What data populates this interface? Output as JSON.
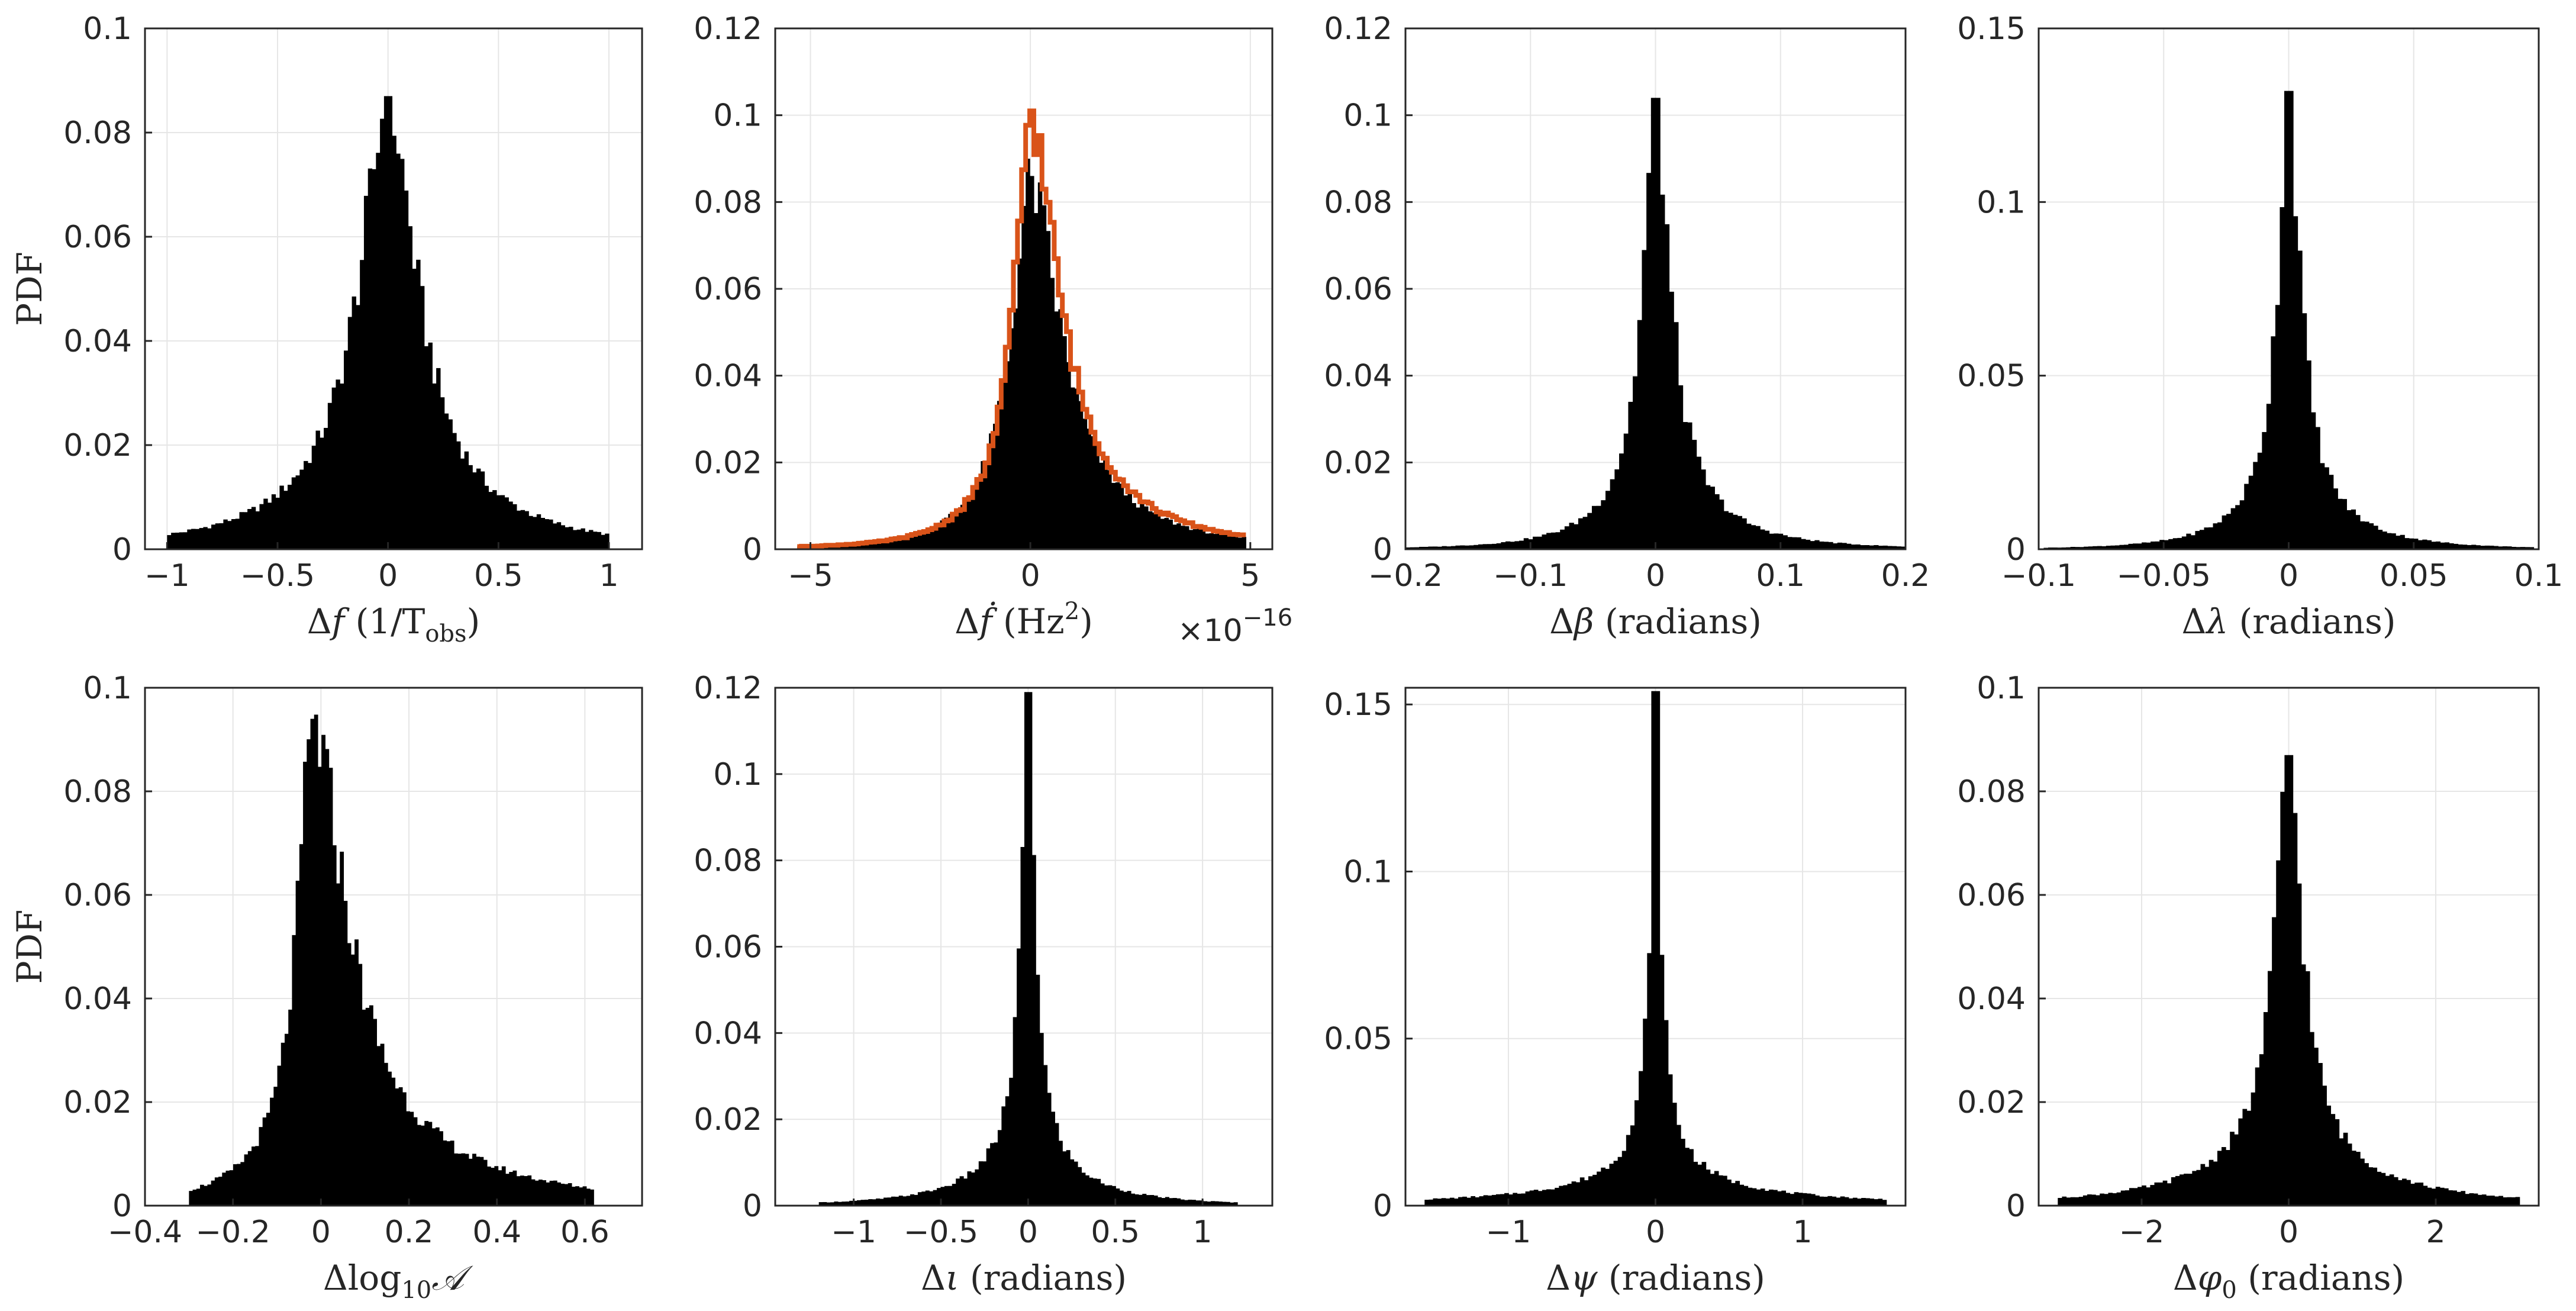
{
  "figure": {
    "ylabel": "PDF",
    "colors": {
      "hist": "#000000",
      "overlay": "#d95319",
      "grid": "#e6e6e6",
      "axis": "#262626"
    }
  },
  "chart_data": [
    {
      "type": "histogram",
      "xlabel": {
        "pre": "Δ",
        "var": "f",
        "post": " (1/T",
        "sub": "obs",
        "end": ")"
      },
      "ylabel": "PDF",
      "xlim": [
        -1.1,
        1.15
      ],
      "ylim": [
        0,
        0.1
      ],
      "xticks": [
        -1,
        -0.5,
        0,
        0.5,
        1
      ],
      "xtick_labels": [
        "−1",
        "−0.5",
        "0",
        "0.5",
        "1"
      ],
      "yticks": [
        0,
        0.02,
        0.04,
        0.06,
        0.08,
        0.1
      ],
      "ytick_labels": [
        "0",
        "0.02",
        "0.04",
        "0.06",
        "0.08",
        "0.1"
      ],
      "center": 0,
      "peak": 0.087,
      "hw": 0.16,
      "tail": 0.55,
      "extent": [
        -1.0,
        1.0
      ],
      "skew": 1.0,
      "bins": 110,
      "exponent": ""
    },
    {
      "type": "histogram",
      "xlabel": {
        "pre": "Δ",
        "var": "ḟ",
        "post": " (Hz",
        "sup": "2",
        "end": ")"
      },
      "xlim": [
        -5.8,
        5.5
      ],
      "ylim": [
        0,
        0.12
      ],
      "xticks": [
        -5,
        0,
        5
      ],
      "xtick_labels": [
        "−5",
        "0",
        "5"
      ],
      "yticks": [
        0,
        0.02,
        0.04,
        0.06,
        0.08,
        0.1,
        0.12
      ],
      "ytick_labels": [
        "0",
        "0.02",
        "0.04",
        "0.06",
        "0.08",
        "0.1",
        "0.12"
      ],
      "center": 0,
      "peak": 0.086,
      "hw": 0.55,
      "tail": 1.2,
      "extent": [
        -5.3,
        4.9
      ],
      "skew": 1.6,
      "bins": 110,
      "overlay": {
        "name": "second distribution",
        "peak": 0.101,
        "hw": 0.45,
        "tail": 1.3,
        "skew": 1.8
      },
      "exponent": {
        "base": "×10",
        "power": "−16"
      }
    },
    {
      "type": "histogram",
      "xlabel": {
        "pre": "Δ",
        "var": "β",
        "post": " (radians)"
      },
      "xlim": [
        -0.2,
        0.2
      ],
      "ylim": [
        0,
        0.12
      ],
      "xticks": [
        -0.2,
        -0.1,
        0,
        0.1,
        0.2
      ],
      "xtick_labels": [
        "−0.2",
        "−0.1",
        "0",
        "0.1",
        "0.2"
      ],
      "yticks": [
        0,
        0.02,
        0.04,
        0.06,
        0.08,
        0.1,
        0.12
      ],
      "ytick_labels": [
        "0",
        "0.02",
        "0.04",
        "0.06",
        "0.08",
        "0.1",
        "0.12"
      ],
      "center": 0,
      "peak": 0.104,
      "hw": 0.012,
      "tail": 0.06,
      "extent": [
        -0.2,
        0.2
      ],
      "skew": 1.15,
      "bins": 110,
      "exponent": ""
    },
    {
      "type": "histogram",
      "xlabel": {
        "pre": "Δ",
        "var": "λ",
        "post": " (radians)"
      },
      "xlim": [
        -0.1,
        0.1
      ],
      "ylim": [
        0,
        0.15
      ],
      "xticks": [
        -0.1,
        -0.05,
        0,
        0.05,
        0.1
      ],
      "xtick_labels": [
        "−0.1",
        "−0.05",
        "0",
        "0.05",
        "0.1"
      ],
      "yticks": [
        0,
        0.05,
        0.1,
        0.15
      ],
      "ytick_labels": [
        "0",
        "0.05",
        "0.1",
        "0.15"
      ],
      "center": 0,
      "peak": 0.132,
      "hw": 0.005,
      "tail": 0.03,
      "extent": [
        -0.098,
        0.098
      ],
      "skew": 1.1,
      "bins": 110,
      "exponent": ""
    },
    {
      "type": "histogram",
      "xlabel": {
        "pre": "Δlog",
        "sub": "10",
        "var": "𝒜",
        "post": ""
      },
      "ylabel": "PDF",
      "xlim": [
        -0.4,
        0.73
      ],
      "ylim": [
        0,
        0.1
      ],
      "xticks": [
        -0.4,
        -0.2,
        0,
        0.2,
        0.4,
        0.6
      ],
      "xtick_labels": [
        "−0.4",
        "−0.2",
        "0",
        "0.2",
        "0.4",
        "0.6"
      ],
      "yticks": [
        0,
        0.02,
        0.04,
        0.06,
        0.08,
        0.1
      ],
      "ytick_labels": [
        "0",
        "0.02",
        "0.04",
        "0.06",
        "0.08",
        "0.1"
      ],
      "center": -0.02,
      "peak": 0.094,
      "hw": 0.04,
      "tail": 0.18,
      "extent": [
        -0.3,
        0.62
      ],
      "skew": 2.4,
      "bins": 110,
      "exponent": ""
    },
    {
      "type": "histogram",
      "xlabel": {
        "pre": "Δ",
        "var": "ι",
        "post": " (radians)"
      },
      "xlim": [
        -1.45,
        1.4
      ],
      "ylim": [
        0,
        0.12
      ],
      "xticks": [
        -1,
        -0.5,
        0,
        0.5,
        1
      ],
      "xtick_labels": [
        "−1",
        "−0.5",
        "0",
        "0.5",
        "1"
      ],
      "yticks": [
        0,
        0.02,
        0.04,
        0.06,
        0.08,
        0.1,
        0.12
      ],
      "ytick_labels": [
        "0",
        "0.02",
        "0.04",
        "0.06",
        "0.08",
        "0.1",
        "0.12"
      ],
      "center": 0,
      "peak": 0.119,
      "hw": 0.045,
      "tail": 0.7,
      "extent": [
        -1.2,
        1.2
      ],
      "skew": 1.0,
      "bins": 110,
      "exponent": ""
    },
    {
      "type": "histogram",
      "xlabel": {
        "pre": "Δ",
        "var": "ψ",
        "post": " (radians)"
      },
      "xlim": [
        -1.7,
        1.7
      ],
      "ylim": [
        0,
        0.155
      ],
      "xticks": [
        -1,
        0,
        1
      ],
      "xtick_labels": [
        "−1",
        "0",
        "1"
      ],
      "yticks": [
        0,
        0.05,
        0.1,
        0.15
      ],
      "ytick_labels": [
        "0",
        "0.05",
        "0.1",
        "0.15"
      ],
      "center": 0,
      "peak": 0.154,
      "hw": 0.04,
      "tail": 3.0,
      "extent": [
        -1.57,
        1.57
      ],
      "skew": 1.0,
      "bins": 110,
      "exponent": ""
    },
    {
      "type": "histogram",
      "xlabel": {
        "pre": "Δ",
        "var": "φ",
        "sub": "0",
        "post": " (radians)"
      },
      "xlim": [
        -3.4,
        3.4
      ],
      "ylim": [
        0,
        0.1
      ],
      "xticks": [
        -2,
        0,
        2
      ],
      "xtick_labels": [
        "−2",
        "0",
        "2"
      ],
      "yticks": [
        0,
        0.02,
        0.04,
        0.06,
        0.08,
        0.1
      ],
      "ytick_labels": [
        "0",
        "0.02",
        "0.04",
        "0.06",
        "0.08",
        "0.1"
      ],
      "center": 0,
      "peak": 0.087,
      "hw": 0.22,
      "tail": 2.5,
      "extent": [
        -3.14,
        3.14
      ],
      "skew": 1.0,
      "bins": 110,
      "exponent": ""
    }
  ]
}
